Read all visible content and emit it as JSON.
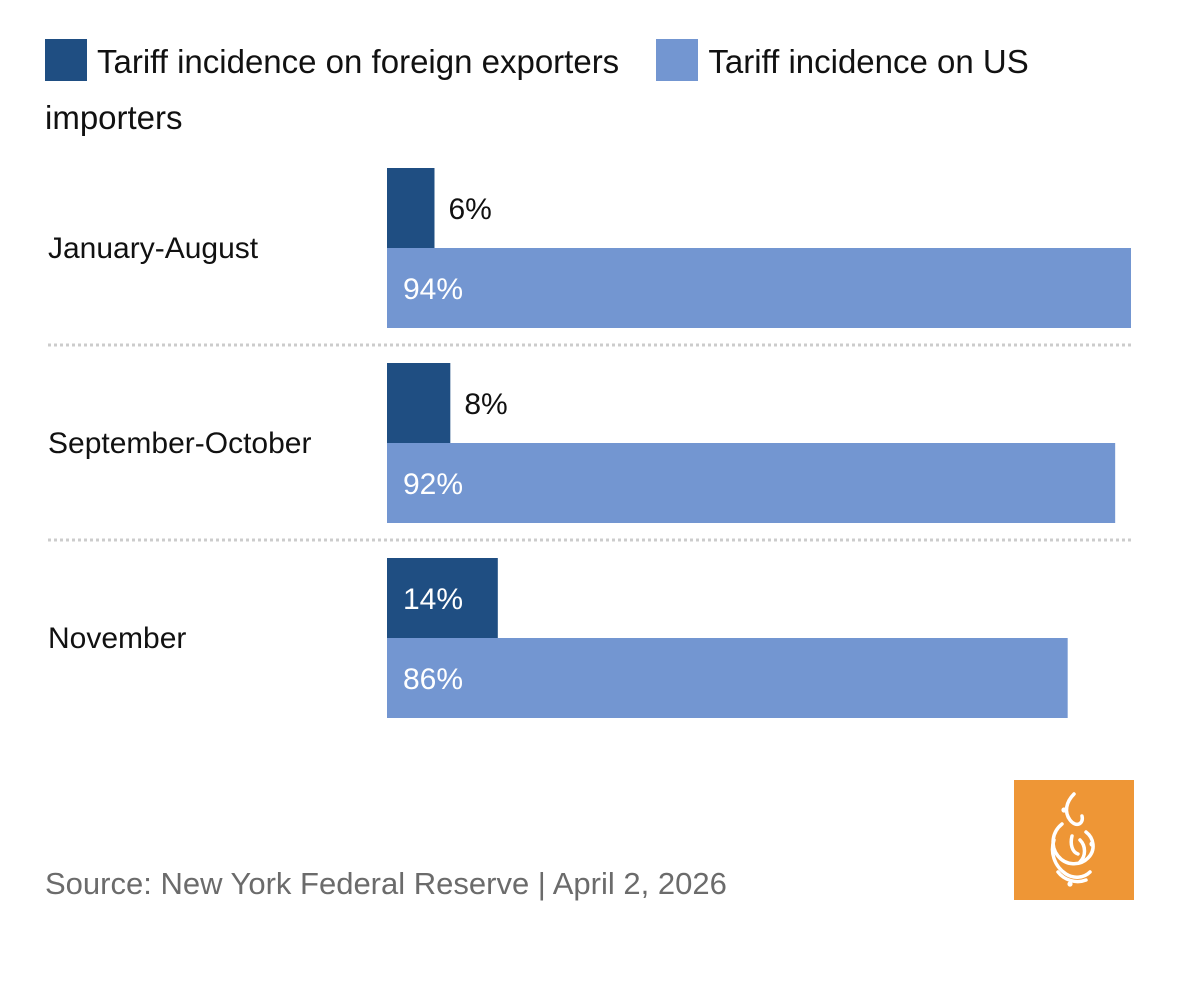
{
  "chart_data": {
    "type": "bar",
    "orientation": "horizontal",
    "categories": [
      "January-August",
      "September-October",
      "November"
    ],
    "series": [
      {
        "name": "Tariff incidence on foreign exporters",
        "color": "#1f4e82",
        "values": [
          6,
          8,
          14
        ],
        "labels": [
          "6%",
          "8%",
          "14%"
        ]
      },
      {
        "name": "Tariff incidence on US importers",
        "color": "#7396d1",
        "values": [
          94,
          92,
          86
        ],
        "labels": [
          "94%",
          "92%",
          "86%"
        ]
      }
    ],
    "xlim": [
      0,
      94
    ],
    "legend_position": "top",
    "grid": false,
    "source": "Source: New York Federal Reserve | April 2, 2026"
  },
  "logo": {
    "name": "al-jazeera-logo-icon",
    "color": "#ee9636"
  }
}
